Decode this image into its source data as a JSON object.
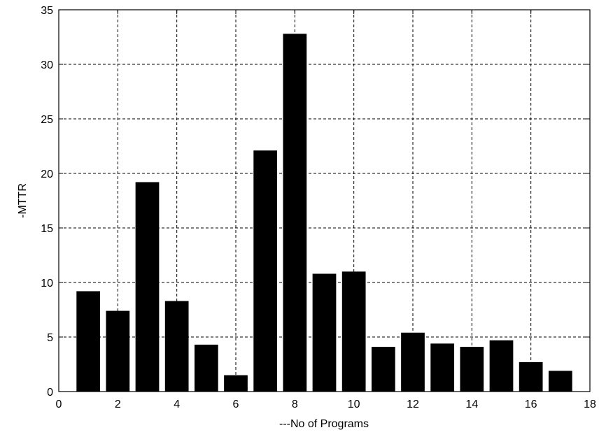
{
  "chart_data": {
    "type": "bar",
    "title": "",
    "xlabel": "---No of Programs",
    "ylabel": "-MTTR",
    "x": [
      1,
      2,
      3,
      4,
      5,
      6,
      7,
      8,
      9,
      10,
      11,
      12,
      13,
      14,
      15,
      16,
      17
    ],
    "values": [
      9.2,
      7.4,
      19.2,
      8.3,
      4.3,
      1.5,
      22.1,
      32.8,
      10.8,
      11.0,
      4.1,
      5.4,
      4.4,
      4.1,
      4.7,
      2.7,
      1.9
    ],
    "xlim": [
      0,
      18
    ],
    "ylim": [
      0,
      35
    ],
    "xticks": [
      "0",
      "2",
      "4",
      "6",
      "8",
      "10",
      "12",
      "14",
      "16",
      "18"
    ],
    "yticks": [
      "0",
      "5",
      "10",
      "15",
      "20",
      "25",
      "30",
      "35"
    ],
    "grid": true,
    "bar_color": "#000000"
  }
}
